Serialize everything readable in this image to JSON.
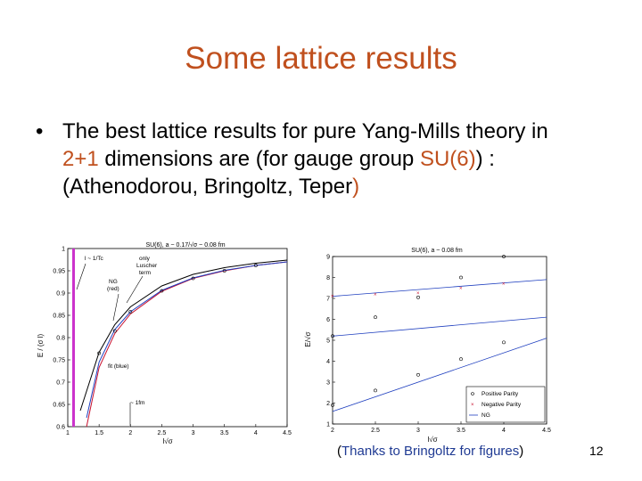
{
  "slide": {
    "title": "Some lattice results",
    "bullet": {
      "dot": "•",
      "text_1": "The best lattice results for pure Yang-Mills theory in ",
      "hl_1": "2+1",
      "text_2": " dimensions are (for gauge group ",
      "hl_2": "SU(6)",
      "text_3": ") : (Athenodorou, Bringoltz, Teper",
      "text_4": ")"
    },
    "caption": {
      "open": "(",
      "text": "Thanks to Bringoltz for figures",
      "close": ")"
    },
    "page_number": "12"
  },
  "figures": {
    "left_title": "SU(6), a ~ 0.17/√σ ~ 0.08 fm",
    "left_ylabel": "E / (σ l)",
    "left_xlabel": "l√σ",
    "left_annotations": {
      "tc": "l ~ 1/Tc",
      "luscher_1": "only",
      "luscher_2": "Luscher",
      "luscher_3": "term",
      "ng_1": "NG",
      "ng_2": "(red)",
      "fit": "fit (blue)",
      "fm": "~ 1fm"
    },
    "right_title": "SU(6), a ~ 0.08 fm",
    "right_ylabel": "E/√σ",
    "right_xlabel": "l√σ",
    "legend": {
      "positive": "Positive Parity",
      "negative": "Negative Parity",
      "ng": "NG"
    },
    "colors": {
      "title": "#c0501e",
      "ng_curve": "#c8102e",
      "fit_curve": "#1f3fbf",
      "tc_band": "#cc33cc"
    }
  },
  "chart_data": [
    {
      "type": "line",
      "title": "SU(6), a ~ 0.17/√σ ~ 0.08 fm",
      "xlabel": "l√σ",
      "ylabel": "E / (σ l)",
      "xlim": [
        1,
        4.5
      ],
      "ylim": [
        0.6,
        1.0
      ],
      "xticks": [
        "1",
        "1.5",
        "2",
        "2.5",
        "3",
        "3.5",
        "4",
        "4.5"
      ],
      "yticks": [
        "0.6",
        "0.65",
        "0.7",
        "0.75",
        "0.8",
        "0.85",
        "0.9",
        "0.95",
        "1"
      ],
      "series": [
        {
          "name": "NG",
          "x": [
            1.3,
            1.5,
            1.75,
            2.0,
            2.5,
            3.0,
            3.5,
            4.0,
            4.5
          ],
          "y": [
            0.6,
            0.733,
            0.809,
            0.853,
            0.904,
            0.933,
            0.95,
            0.962,
            0.97
          ]
        },
        {
          "name": "fit",
          "x": [
            1.3,
            1.5,
            1.75,
            2.0,
            2.5,
            3.0,
            3.5,
            4.0,
            4.5
          ],
          "y": [
            0.62,
            0.745,
            0.818,
            0.858,
            0.906,
            0.934,
            0.951,
            0.962,
            0.97
          ]
        },
        {
          "name": "only Luscher term",
          "x": [
            1.2,
            1.5,
            1.75,
            2.0,
            2.5,
            3.0,
            3.5,
            4.0,
            4.5
          ],
          "y": [
            0.636,
            0.767,
            0.829,
            0.869,
            0.916,
            0.942,
            0.957,
            0.967,
            0.974
          ]
        }
      ],
      "points": {
        "x": [
          1.5,
          1.75,
          2.0,
          2.5,
          3.0,
          3.5,
          4.0
        ],
        "y": [
          0.765,
          0.815,
          0.858,
          0.905,
          0.933,
          0.95,
          0.962
        ]
      }
    },
    {
      "type": "scatter",
      "title": "SU(6), a ~ 0.08 fm",
      "xlabel": "l√σ",
      "ylabel": "E/√σ",
      "xlim": [
        2,
        4.5
      ],
      "ylim": [
        1,
        9
      ],
      "xticks": [
        "2",
        "2.5",
        "3",
        "3.5",
        "4",
        "4.5"
      ],
      "yticks": [
        "1",
        "2",
        "3",
        "4",
        "5",
        "6",
        "7",
        "8",
        "9"
      ],
      "series": [
        {
          "name": "Positive Parity",
          "x": [
            2.0,
            2.5,
            3.0,
            3.5,
            4.0
          ],
          "y": [
            1.9,
            2.6,
            3.35,
            4.1,
            4.9
          ]
        },
        {
          "name": "Negative Parity",
          "x": [
            2.0,
            2.5,
            3.0,
            3.5,
            4.0
          ],
          "y": [
            7.1,
            7.2,
            7.25,
            7.5,
            7.7
          ]
        },
        {
          "name": "NG",
          "x": [
            2.0,
            4.5
          ],
          "y": [
            1.6,
            5.1
          ]
        }
      ]
    }
  ]
}
